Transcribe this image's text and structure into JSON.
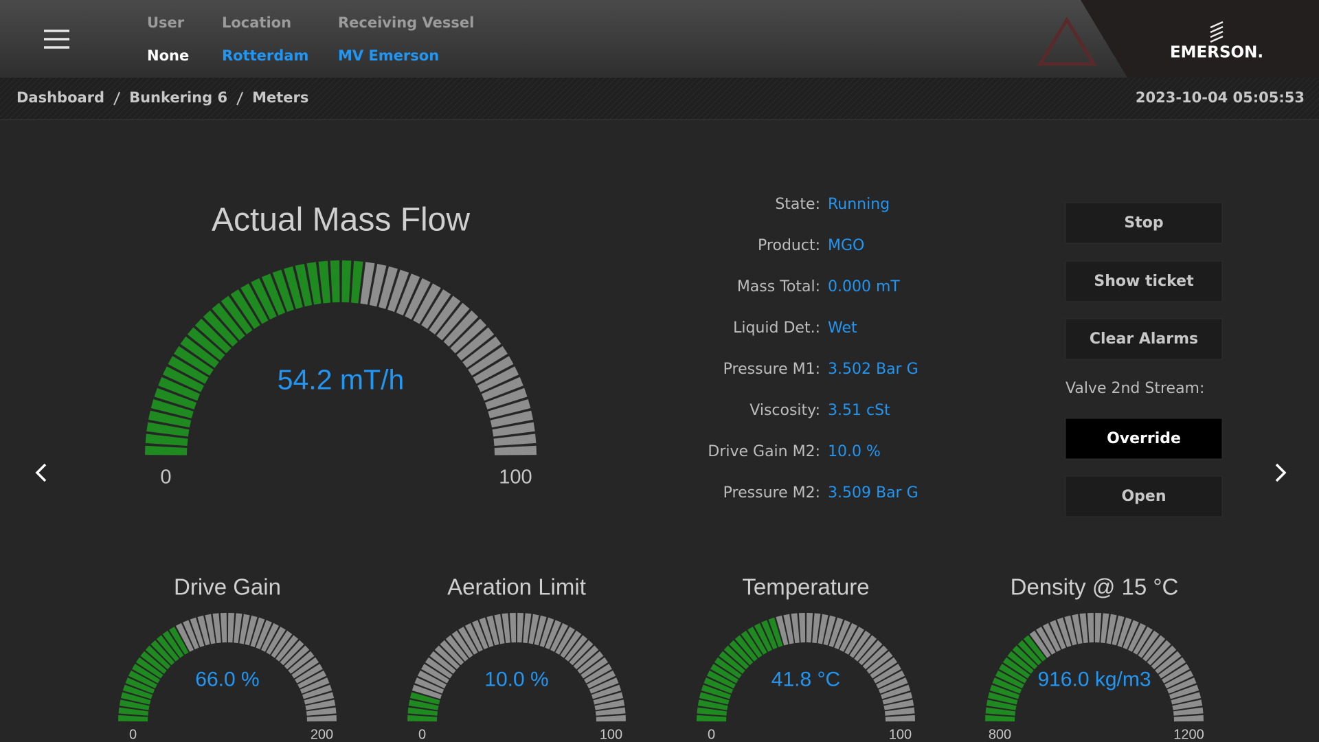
{
  "header": {
    "user_label": "User",
    "user": "None",
    "location_label": "Location",
    "location": "Rotterdam",
    "vessel_label": "Receiving Vessel",
    "vessel": "MV Emerson",
    "logo": "EMERSON."
  },
  "breadcrumb": [
    "Dashboard",
    "Bunkering 6",
    "Meters"
  ],
  "timestamp": "2023-10-04 05:05:53",
  "main_gauge": {
    "title": "Actual Mass Flow",
    "value": 54.2,
    "value_label": "54.2 mT/h",
    "min": 0,
    "max": 100
  },
  "status": [
    {
      "label": "State:",
      "value": "Running"
    },
    {
      "label": "Product:",
      "value": "MGO"
    },
    {
      "label": "Mass Total:",
      "value": "0.000 mT"
    },
    {
      "label": "Liquid Det.:",
      "value": "Wet"
    },
    {
      "label": "Pressure M1:",
      "value": "3.502 Bar G"
    },
    {
      "label": "Viscosity:",
      "value": "3.51 cSt"
    },
    {
      "label": "Drive Gain M2:",
      "value": "10.0 %"
    },
    {
      "label": "Pressure M2:",
      "value": "3.509 Bar G"
    }
  ],
  "buttons": {
    "stop": "Stop",
    "show_ticket": "Show ticket",
    "clear_alarms": "Clear Alarms",
    "valve_label": "Valve 2nd Stream:",
    "override": "Override",
    "open": "Open"
  },
  "gauges": [
    {
      "title": "Drive Gain",
      "value": 66.0,
      "value_label": "66.0 %",
      "min": 0,
      "max": 200
    },
    {
      "title": "Aeration Limit",
      "value": 10.0,
      "value_label": "10.0 %",
      "min": 0,
      "max": 100
    },
    {
      "title": "Temperature",
      "value": 41.8,
      "value_label": "41.8 °C",
      "min": 0,
      "max": 100
    },
    {
      "title": "Density @ 15 °C",
      "value": 916.0,
      "value_label": "916.0 kg/m3",
      "min": 800,
      "max": 1200
    }
  ]
}
